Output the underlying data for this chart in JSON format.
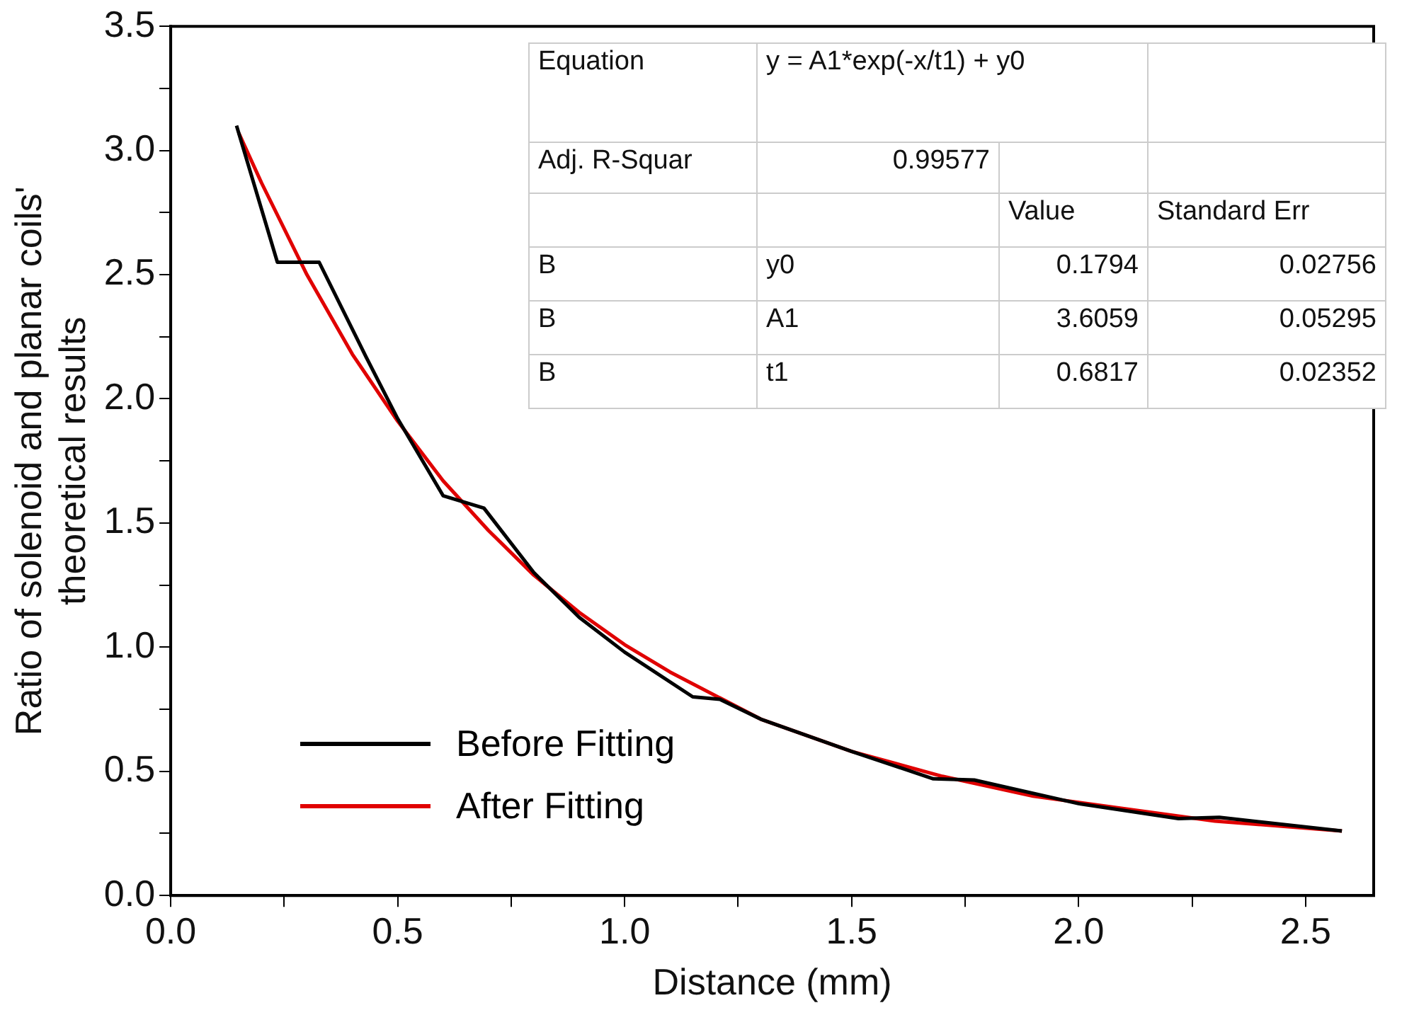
{
  "chart_data": {
    "type": "line",
    "xlabel": "Distance (mm)",
    "ylabel": "Ratio of solenoid and planar coils'\ntheoretical results",
    "xlim": [
      0,
      2.65
    ],
    "ylim": [
      0,
      3.5
    ],
    "xticks": [
      {
        "value": 0,
        "label": "0.0"
      },
      {
        "value": 0.25,
        "label": null
      },
      0.5,
      {
        "value": 0.75,
        "label": null
      },
      {
        "value": 1,
        "label": "1.0"
      },
      {
        "value": 1.25,
        "label": null
      },
      1.5,
      {
        "value": 1.75,
        "label": null
      },
      {
        "value": 2,
        "label": "2.0"
      },
      {
        "value": 2.25,
        "label": null
      },
      2.5
    ],
    "yticks": [
      {
        "value": 0,
        "label": "0.0"
      },
      {
        "value": 0.25,
        "label": null
      },
      0.5,
      {
        "value": 0.75,
        "label": null
      },
      {
        "value": 1,
        "label": "1.0"
      },
      {
        "value": 1.25,
        "label": null
      },
      1.5,
      {
        "value": 1.75,
        "label": null
      },
      {
        "value": 2,
        "label": "2.0"
      },
      {
        "value": 2.25,
        "label": null
      },
      2.5,
      {
        "value": 2.75,
        "label": null
      },
      {
        "value": 3,
        "label": "3.0"
      },
      {
        "value": 3.25,
        "label": null
      },
      3.5
    ],
    "grid": false,
    "legend": "bottom left",
    "marker": "none",
    "line_style": "solid",
    "series": [
      {
        "name": "Before Fitting",
        "color": "#000000",
        "x": [
          0.145,
          0.235,
          0.327,
          0.43,
          0.5,
          0.6,
          0.69,
          0.8,
          0.9,
          1.0,
          1.15,
          1.21,
          1.3,
          1.5,
          1.68,
          1.77,
          2.0,
          2.22,
          2.31,
          2.58
        ],
        "values": [
          3.1,
          2.55,
          2.55,
          2.17,
          1.92,
          1.61,
          1.56,
          1.3,
          1.12,
          0.98,
          0.8,
          0.79,
          0.71,
          0.58,
          0.47,
          0.465,
          0.37,
          0.31,
          0.315,
          0.26
        ]
      },
      {
        "name": "After Fitting",
        "color": "#e00000",
        "x": [
          0.15,
          0.2,
          0.3,
          0.4,
          0.5,
          0.6,
          0.7,
          0.8,
          0.9,
          1.0,
          1.1,
          1.3,
          1.5,
          1.7,
          1.9,
          2.1,
          2.3,
          2.58
        ],
        "values": [
          3.07,
          2.87,
          2.5,
          2.18,
          1.91,
          1.67,
          1.47,
          1.29,
          1.14,
          1.01,
          0.9,
          0.71,
          0.58,
          0.48,
          0.4,
          0.35,
          0.3,
          0.26
        ]
      }
    ],
    "annotations": [
      "Equation",
      "y = A1*exp(-x/t1) + y0",
      "Adj. R-Squar",
      "0.99577",
      "Value",
      "Standard Err",
      "B",
      "y0",
      "0.1794",
      "0.02756",
      "B",
      "A1",
      "3.6059",
      "0.05295",
      "B",
      "t1",
      "0.6817",
      "0.02352"
    ]
  }
}
